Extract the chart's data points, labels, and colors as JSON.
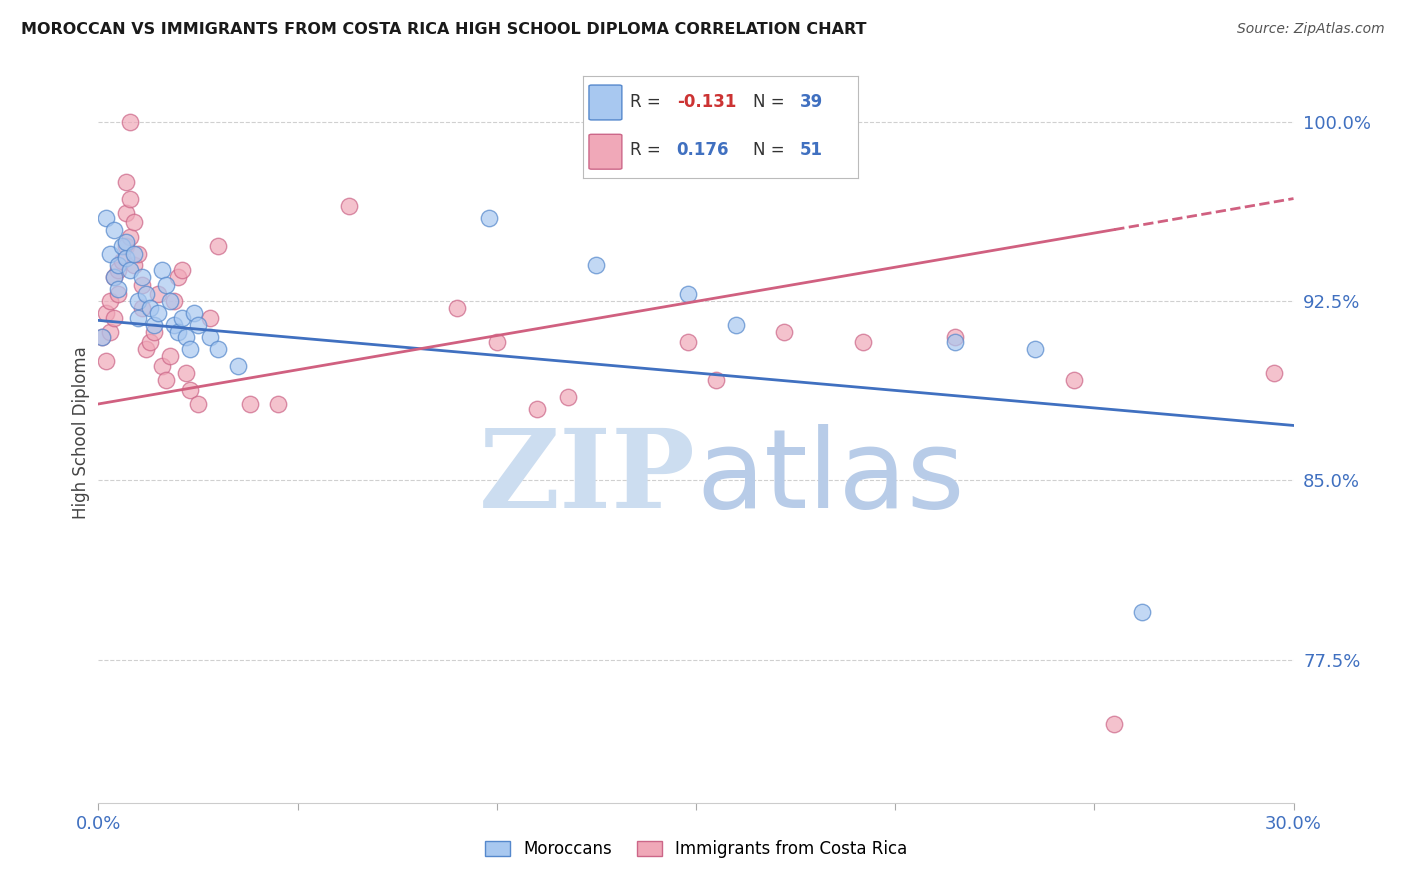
{
  "title": "MOROCCAN VS IMMIGRANTS FROM COSTA RICA HIGH SCHOOL DIPLOMA CORRELATION CHART",
  "source": "Source: ZipAtlas.com",
  "ylabel": "High School Diploma",
  "ytick_labels": [
    "100.0%",
    "92.5%",
    "85.0%",
    "77.5%"
  ],
  "ytick_values": [
    1.0,
    0.925,
    0.85,
    0.775
  ],
  "xmin": 0.0,
  "xmax": 0.3,
  "ymin": 0.715,
  "ymax": 1.025,
  "legend_blue_r": "-0.131",
  "legend_blue_n": "39",
  "legend_pink_r": "0.176",
  "legend_pink_n": "51",
  "blue_color": "#a8c8f0",
  "pink_color": "#f0a8b8",
  "blue_edge_color": "#5588cc",
  "pink_edge_color": "#cc6688",
  "blue_line_color": "#4070c0",
  "pink_line_color": "#d06080",
  "blue_line": {
    "x0": 0.0,
    "y0": 0.917,
    "x1": 0.3,
    "y1": 0.873
  },
  "pink_line_solid": {
    "x0": 0.0,
    "y0": 0.882,
    "x1": 0.255,
    "y1": 0.955
  },
  "pink_line_dashed": {
    "x0": 0.255,
    "y0": 0.955,
    "x1": 0.3,
    "y1": 0.968
  },
  "blue_scatter": [
    [
      0.001,
      0.91
    ],
    [
      0.002,
      0.96
    ],
    [
      0.003,
      0.945
    ],
    [
      0.004,
      0.935
    ],
    [
      0.004,
      0.955
    ],
    [
      0.005,
      0.93
    ],
    [
      0.005,
      0.94
    ],
    [
      0.006,
      0.948
    ],
    [
      0.007,
      0.943
    ],
    [
      0.007,
      0.95
    ],
    [
      0.008,
      0.938
    ],
    [
      0.009,
      0.945
    ],
    [
      0.01,
      0.918
    ],
    [
      0.01,
      0.925
    ],
    [
      0.011,
      0.935
    ],
    [
      0.012,
      0.928
    ],
    [
      0.013,
      0.922
    ],
    [
      0.014,
      0.915
    ],
    [
      0.015,
      0.92
    ],
    [
      0.016,
      0.938
    ],
    [
      0.017,
      0.932
    ],
    [
      0.018,
      0.925
    ],
    [
      0.019,
      0.915
    ],
    [
      0.02,
      0.912
    ],
    [
      0.021,
      0.918
    ],
    [
      0.022,
      0.91
    ],
    [
      0.023,
      0.905
    ],
    [
      0.024,
      0.92
    ],
    [
      0.025,
      0.915
    ],
    [
      0.028,
      0.91
    ],
    [
      0.03,
      0.905
    ],
    [
      0.035,
      0.898
    ],
    [
      0.098,
      0.96
    ],
    [
      0.125,
      0.94
    ],
    [
      0.148,
      0.928
    ],
    [
      0.16,
      0.915
    ],
    [
      0.215,
      0.908
    ],
    [
      0.235,
      0.905
    ],
    [
      0.262,
      0.795
    ]
  ],
  "pink_scatter": [
    [
      0.001,
      0.91
    ],
    [
      0.002,
      0.9
    ],
    [
      0.002,
      0.92
    ],
    [
      0.003,
      0.925
    ],
    [
      0.003,
      0.912
    ],
    [
      0.004,
      0.918
    ],
    [
      0.004,
      0.935
    ],
    [
      0.005,
      0.928
    ],
    [
      0.005,
      0.938
    ],
    [
      0.006,
      0.942
    ],
    [
      0.007,
      0.948
    ],
    [
      0.007,
      0.962
    ],
    [
      0.007,
      0.975
    ],
    [
      0.008,
      0.952
    ],
    [
      0.008,
      0.968
    ],
    [
      0.008,
      1.0
    ],
    [
      0.009,
      0.958
    ],
    [
      0.009,
      0.94
    ],
    [
      0.01,
      0.945
    ],
    [
      0.011,
      0.922
    ],
    [
      0.011,
      0.932
    ],
    [
      0.012,
      0.905
    ],
    [
      0.013,
      0.908
    ],
    [
      0.014,
      0.912
    ],
    [
      0.015,
      0.928
    ],
    [
      0.016,
      0.898
    ],
    [
      0.017,
      0.892
    ],
    [
      0.018,
      0.902
    ],
    [
      0.019,
      0.925
    ],
    [
      0.02,
      0.935
    ],
    [
      0.021,
      0.938
    ],
    [
      0.022,
      0.895
    ],
    [
      0.023,
      0.888
    ],
    [
      0.025,
      0.882
    ],
    [
      0.028,
      0.918
    ],
    [
      0.03,
      0.948
    ],
    [
      0.038,
      0.882
    ],
    [
      0.045,
      0.882
    ],
    [
      0.063,
      0.965
    ],
    [
      0.09,
      0.922
    ],
    [
      0.1,
      0.908
    ],
    [
      0.11,
      0.88
    ],
    [
      0.118,
      0.885
    ],
    [
      0.148,
      0.908
    ],
    [
      0.155,
      0.892
    ],
    [
      0.172,
      0.912
    ],
    [
      0.192,
      0.908
    ],
    [
      0.215,
      0.91
    ],
    [
      0.245,
      0.892
    ],
    [
      0.255,
      0.748
    ],
    [
      0.295,
      0.895
    ]
  ],
  "watermark_zip_color": "#ccddf0",
  "watermark_atlas_color": "#b8cce8"
}
